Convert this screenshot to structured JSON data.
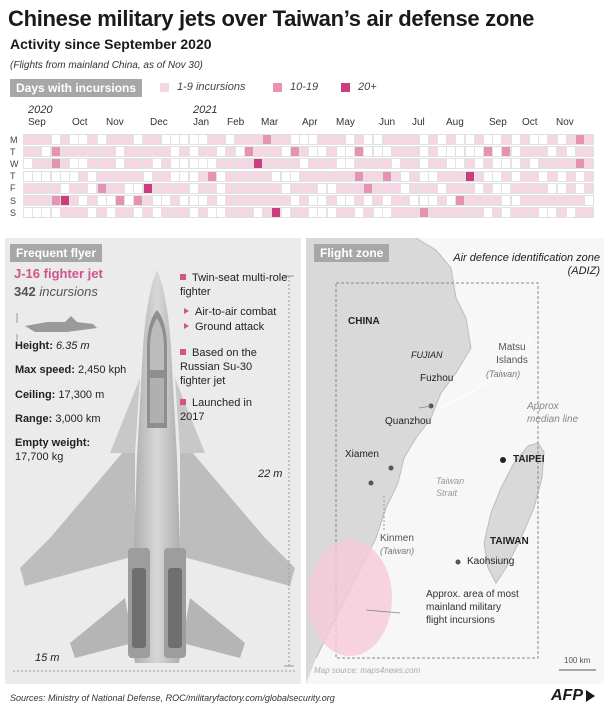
{
  "header": {
    "title": "Chinese military jets over Taiwan’s air defense zone",
    "subtitle": "Activity since September 2020",
    "note": "(Flights from mainland China, as of Nov 30)"
  },
  "calendar": {
    "section_label": "Days with incursions",
    "legend": [
      {
        "label": "1-9 incursions",
        "color": "#f4d7e2"
      },
      {
        "label": "10-19",
        "color": "#e692b3"
      },
      {
        "label": "20+",
        "color": "#cc3d7c"
      }
    ],
    "years": [
      "2020",
      "2021"
    ],
    "months": [
      "Sep",
      "Oct",
      "Nov",
      "Dec",
      "Jan",
      "Feb",
      "Mar",
      "Apr",
      "May",
      "Jun",
      "Jul",
      "Aug",
      "Sep",
      "Oct",
      "Nov"
    ],
    "days": [
      "M",
      "T",
      "W",
      "T",
      "F",
      "S",
      "S"
    ]
  },
  "jet": {
    "section_label": "Frequent flyer",
    "name": "J-16 fighter jet",
    "incursions": "342",
    "incursions_label": "incursions",
    "specs": [
      {
        "label": "Height:",
        "value": "6.35 m"
      },
      {
        "label": "Max speed:",
        "value": "2,450 kph"
      },
      {
        "label": "Ceiling:",
        "value": "17,300 m"
      },
      {
        "label": "Range:",
        "value": "3,000 km"
      },
      {
        "label": "Empty weight:",
        "value": "17,700 kg"
      }
    ],
    "features": {
      "role": "Twin-seat multi-role fighter",
      "sub": [
        "Air-to-air combat",
        "Ground attack"
      ],
      "based": "Based on the Russian Su-30 fighter jet",
      "launched": "Launched in 2017"
    },
    "length": "22 m",
    "wingspan": "15 m"
  },
  "map": {
    "section_label": "Flight zone",
    "adiz": "Air defence identification zone (ADIZ)",
    "china": "CHINA",
    "fujian": "FUJIAN",
    "matsu": "Matsu Islands",
    "matsu_sub": "(Taiwan)",
    "fuzhou": "Fuzhou",
    "quanzhou": "Quanzhou",
    "xiamen": "Xiamen",
    "median": "Approx median line",
    "taipei": "TAIPEI",
    "strait": "Taiwan Strait",
    "kinmen": "Kinmen",
    "kinmen_sub": "(Taiwan)",
    "taiwan": "TAIWAN",
    "kaohsiung": "Kaohsiung",
    "area_note": "Approx. area of most mainland military flight incursions",
    "scale": "100 km",
    "source": "Map source: maps4news.com"
  },
  "footer": {
    "sources": "Sources: Ministry of National Defense, ROC/militaryfactory.com/globalsecurity.org",
    "logo": "AFP"
  },
  "colors": {
    "accent": "#d1548a",
    "panel": "#ebebeb",
    "label_bg": "#a7a7a7"
  }
}
